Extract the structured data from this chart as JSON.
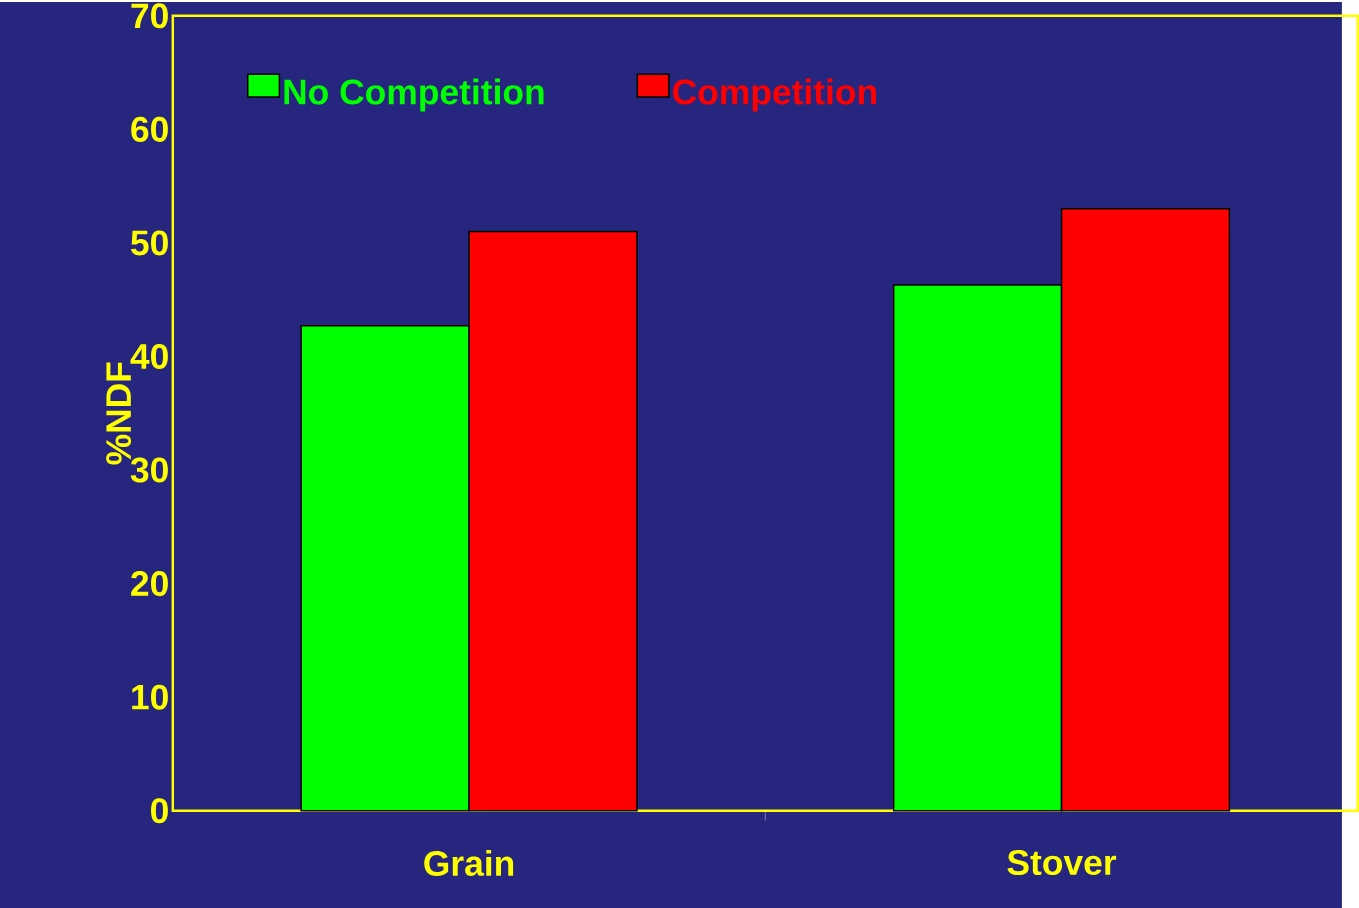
{
  "chart_data": {
    "type": "bar",
    "ylabel": "%NDF",
    "categories": [
      "Grain",
      "Stover"
    ],
    "series": [
      {
        "name": "No Competition",
        "color": "#00ff00",
        "values": [
          42.7,
          46.3
        ]
      },
      {
        "name": "Competition",
        "color": "#ff0000",
        "values": [
          51.0,
          53.0
        ]
      }
    ],
    "ylim": [
      0,
      70
    ],
    "yticks": [
      0,
      10,
      20,
      30,
      40,
      50,
      60,
      70
    ],
    "grid": false,
    "legend": "top left"
  }
}
